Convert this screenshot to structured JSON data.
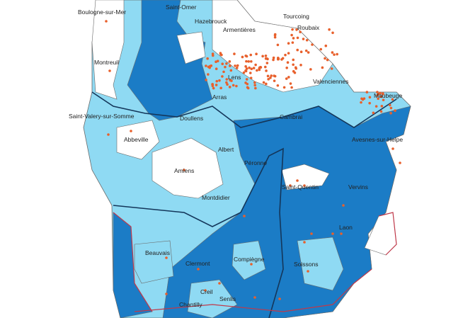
{
  "map": {
    "colors": {
      "dark_zone": "#1b7cc6",
      "light_zone": "#8fdaf3",
      "white_zone": "#ffffff",
      "point": "#e8602c",
      "region_border": "#14365a",
      "department_border_red": "#c0394a",
      "inner_border": "#6a6a6a"
    },
    "cities": [
      "Boulogne-sur-Mer",
      "Saint-Omer",
      "Hazebrouck",
      "Armentières",
      "Tourcoing",
      "Roubaix",
      "Montreuil",
      "Lens",
      "Arras",
      "Valenciennes",
      "Maubeuge",
      "Saint-Valery-sur-Somme",
      "Doullens",
      "Cambrai",
      "Abbeville",
      "Avesnes-sur-Helpe",
      "Albert",
      "Péronne",
      "Amiens",
      "Saint-Quentin",
      "Vervins",
      "Montdidier",
      "Laon",
      "Beauvais",
      "Clermont",
      "Compiègne",
      "Soissons",
      "Creil",
      "Senlis",
      "Chantilly"
    ]
  }
}
